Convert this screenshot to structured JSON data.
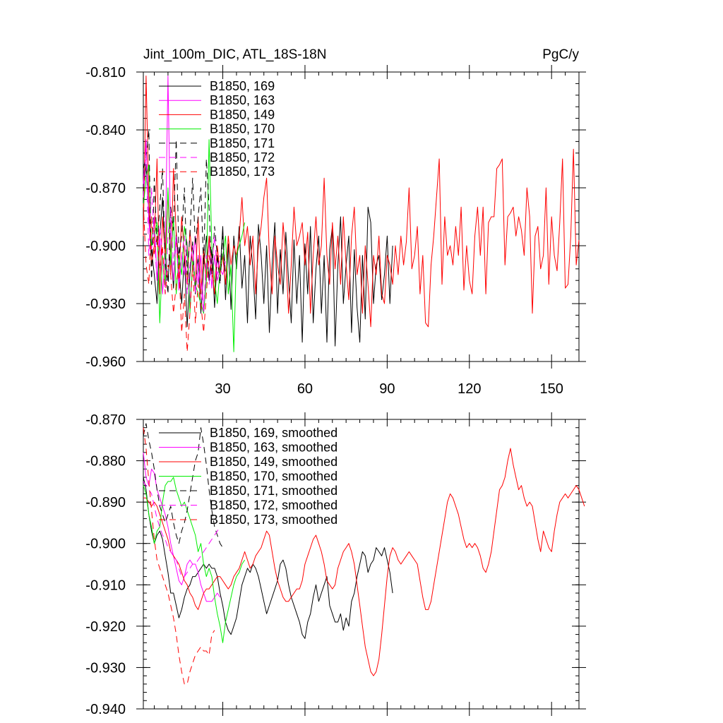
{
  "chart_data": [
    {
      "type": "line",
      "title_left": "Jint_100m_DIC, ATL_18S-18N",
      "title_right": "PgC/y",
      "xlim": [
        1,
        160
      ],
      "ylim": [
        -0.96,
        -0.81
      ],
      "xticks": [
        30,
        60,
        90,
        120,
        150
      ],
      "xtick_labels": [
        "30",
        "60",
        "90",
        "120",
        "150"
      ],
      "yticks": [
        -0.96,
        -0.93,
        -0.9,
        -0.87,
        -0.84,
        -0.81
      ],
      "ytick_labels": [
        "-0.960",
        "-0.930",
        "-0.900",
        "-0.870",
        "-0.840",
        "-0.810"
      ],
      "legend_position": "top-left",
      "series": [
        {
          "name": "B1850, 169",
          "color": "#000000",
          "dash": "solid",
          "values": [
            -0.872,
            -0.858,
            -0.884,
            -0.902,
            -0.915,
            -0.93,
            -0.895,
            -0.875,
            -0.905,
            -0.918,
            -0.9,
            -0.922,
            -0.893,
            -0.91,
            -0.93,
            -0.905,
            -0.942,
            -0.915,
            -0.898,
            -0.925,
            -0.905,
            -0.935,
            -0.912,
            -0.895,
            -0.918,
            -0.902,
            -0.932,
            -0.905,
            -0.915,
            -0.89,
            -0.928,
            -0.899,
            -0.933,
            -0.895,
            -0.912,
            -0.89,
            -0.922,
            -0.905,
            -0.94,
            -0.895,
            -0.912,
            -0.938,
            -0.889,
            -0.905,
            -0.93,
            -0.9,
            -0.945,
            -0.91,
            -0.888,
            -0.935,
            -0.902,
            -0.925,
            -0.893,
            -0.918,
            -0.94,
            -0.897,
            -0.93,
            -0.905,
            -0.95,
            -0.899,
            -0.925,
            -0.89,
            -0.94,
            -0.912,
            -0.895,
            -0.935,
            -0.905,
            -0.95,
            -0.902,
            -0.89,
            -0.952,
            -0.91,
            -0.885,
            -0.93,
            -0.91,
            -0.895,
            -0.945,
            -0.902,
            -0.932,
            -0.95,
            -0.905,
            -0.938,
            -0.88,
            -0.888,
            -0.93,
            -0.91,
            -0.905,
            -0.928,
            -0.915,
            -0.895,
            -0.93,
            -0.9
          ]
        },
        {
          "name": "B1850, 163",
          "color": "#ff00ff",
          "dash": "solid",
          "values": [
            -0.868,
            -0.845,
            -0.888,
            -0.902,
            -0.885,
            -0.918,
            -0.895,
            -0.925,
            -0.905,
            -0.812,
            -0.9,
            -0.918,
            -0.895,
            -0.923,
            -0.905,
            -0.915,
            -0.898,
            -0.93,
            -0.91,
            -0.895,
            -0.92,
            -0.905,
            -0.935,
            -0.912,
            -0.898,
            -0.922,
            -0.905,
            -0.918,
            -0.912,
            -0.915,
            -0.908
          ]
        },
        {
          "name": "B1850, 149",
          "color": "#ff0000",
          "dash": "solid",
          "values": [
            -0.895,
            -0.812,
            -0.875,
            -0.91,
            -0.9,
            -0.855,
            -0.925,
            -0.885,
            -0.905,
            -0.872,
            -0.915,
            -0.86,
            -0.895,
            -0.918,
            -0.885,
            -0.905,
            -0.92,
            -0.892,
            -0.91,
            -0.92,
            -0.885,
            -0.925,
            -0.902,
            -0.918,
            -0.895,
            -0.91,
            -0.925,
            -0.9,
            -0.915,
            -0.905,
            -0.92,
            -0.895,
            -0.91,
            -0.9,
            -0.905,
            -0.895,
            -0.875,
            -0.9,
            -0.89,
            -0.91,
            -0.895,
            -0.925,
            -0.9,
            -0.89,
            -0.875,
            -0.865,
            -0.905,
            -0.925,
            -0.895,
            -0.91,
            -0.92,
            -0.888,
            -0.905,
            -0.935,
            -0.91,
            -0.88,
            -0.9,
            -0.895,
            -0.888,
            -0.91,
            -0.893,
            -0.935,
            -0.905,
            -0.885,
            -0.91,
            -0.9,
            -0.865,
            -0.905,
            -0.92,
            -0.888,
            -0.912,
            -0.895,
            -0.92,
            -0.885,
            -0.91,
            -0.928,
            -0.895,
            -0.88,
            -0.915,
            -0.905,
            -0.935,
            -0.9,
            -0.92,
            -0.942,
            -0.905,
            -0.915,
            -0.895,
            -0.925,
            -0.93,
            -0.905,
            -0.91,
            -0.92,
            -0.9,
            -0.915,
            -0.895,
            -0.91,
            -0.898,
            -0.87,
            -0.912,
            -0.905,
            -0.89,
            -0.925,
            -0.905,
            -0.94,
            -0.942,
            -0.91,
            -0.895,
            -0.875,
            -0.855,
            -0.92,
            -0.885,
            -0.905,
            -0.9,
            -0.91,
            -0.89,
            -0.905,
            -0.88,
            -0.923,
            -0.9,
            -0.918,
            -0.925,
            -0.895,
            -0.88,
            -0.905,
            -0.88,
            -0.925,
            -0.888,
            -0.885,
            -0.885,
            -0.86,
            -0.858,
            -0.855,
            -0.91,
            -0.885,
            -0.883,
            -0.88,
            -0.895,
            -0.885,
            -0.892,
            -0.905,
            -0.87,
            -0.885,
            -0.935,
            -0.895,
            -0.89,
            -0.912,
            -0.905,
            -0.87,
            -0.92,
            -0.885,
            -0.905,
            -0.913,
            -0.888,
            -0.855,
            -0.922,
            -0.92,
            -0.895,
            -0.85,
            -0.91,
            -0.897
          ]
        },
        {
          "name": "B1850, 170",
          "color": "#00ee00",
          "dash": "solid",
          "values": [
            -0.88,
            -0.865,
            -0.858,
            -0.9,
            -0.895,
            -0.888,
            -0.94,
            -0.905,
            -0.92,
            -0.87,
            -0.91,
            -0.885,
            -0.925,
            -0.905,
            -0.915,
            -0.89,
            -0.9,
            -0.935,
            -0.908,
            -0.92,
            -0.925,
            -0.93,
            -0.935,
            -0.918,
            -0.845,
            -0.9,
            -0.918,
            -0.93,
            -0.912,
            -0.905,
            -0.895,
            -0.925,
            -0.91,
            -0.955,
            -0.905,
            -0.9,
            -0.895,
            -0.888
          ]
        },
        {
          "name": "B1850, 171",
          "color": "#000000",
          "dash": "9 6",
          "values": [
            -0.86,
            -0.855,
            -0.84,
            -0.92,
            -0.865,
            -0.9,
            -0.88,
            -0.86,
            -0.91,
            -0.925,
            -0.88,
            -0.892,
            -0.845,
            -0.905,
            -0.895,
            -0.87,
            -0.915,
            -0.895,
            -0.865,
            -0.9,
            -0.885,
            -0.87,
            -0.91,
            -0.855,
            -0.88,
            -0.915,
            -0.89,
            -0.905,
            -0.92,
            -0.895,
            -0.915
          ]
        },
        {
          "name": "B1850, 172",
          "color": "#ff00ff",
          "dash": "9 6",
          "values": [
            -0.875,
            -0.85,
            -0.905,
            -0.87,
            -0.895,
            -0.918,
            -0.89,
            -0.905,
            -0.925,
            -0.895,
            -0.882,
            -0.91,
            -0.895,
            -0.92,
            -0.905,
            -0.895,
            -0.925,
            -0.91,
            -0.9,
            -0.925,
            -0.905,
            -0.92,
            -0.935,
            -0.905,
            -0.92,
            -0.91,
            -0.895,
            -0.915,
            -0.905
          ]
        },
        {
          "name": "B1850, 173",
          "color": "#ff0000",
          "dash": "9 6",
          "values": [
            -0.878,
            -0.91,
            -0.92,
            -0.885,
            -0.905,
            -0.895,
            -0.912,
            -0.9,
            -0.925,
            -0.91,
            -0.915,
            -0.935,
            -0.92,
            -0.91,
            -0.945,
            -0.925,
            -0.955,
            -0.935,
            -0.91,
            -0.94,
            -0.92,
            -0.93,
            -0.945,
            -0.925,
            -0.905,
            -0.915,
            -0.92
          ]
        }
      ]
    },
    {
      "type": "line",
      "xlim": [
        1,
        160
      ],
      "ylim": [
        -0.94,
        -0.87
      ],
      "xticks": [
        30,
        60,
        90,
        120,
        150
      ],
      "yticks": [
        -0.94,
        -0.93,
        -0.92,
        -0.91,
        -0.9,
        -0.89,
        -0.88,
        -0.87
      ],
      "ytick_labels": [
        "-0.940",
        "-0.930",
        "-0.920",
        "-0.910",
        "-0.900",
        "-0.890",
        "-0.880",
        "-0.870"
      ],
      "legend_position": "top-left",
      "series": [
        {
          "name": "B1850, 169, smoothed",
          "color": "#000000",
          "dash": "solid",
          "values": [
            -0.884,
            -0.887,
            -0.893,
            -0.897,
            -0.9,
            -0.898,
            -0.897,
            -0.899,
            -0.903,
            -0.907,
            -0.912,
            -0.912,
            -0.915,
            -0.918,
            -0.916,
            -0.913,
            -0.911,
            -0.91,
            -0.908,
            -0.908,
            -0.907,
            -0.906,
            -0.905,
            -0.906,
            -0.905,
            -0.906,
            -0.906,
            -0.908,
            -0.912,
            -0.915,
            -0.919,
            -0.921,
            -0.922,
            -0.92,
            -0.918,
            -0.914,
            -0.91,
            -0.908,
            -0.906,
            -0.907,
            -0.905,
            -0.906,
            -0.908,
            -0.911,
            -0.914,
            -0.917,
            -0.915,
            -0.913,
            -0.911,
            -0.909,
            -0.905,
            -0.904,
            -0.906,
            -0.91,
            -0.913,
            -0.915,
            -0.917,
            -0.919,
            -0.922,
            -0.923,
            -0.919,
            -0.917,
            -0.913,
            -0.91,
            -0.914,
            -0.912,
            -0.91,
            -0.908,
            -0.915,
            -0.917,
            -0.919,
            -0.919,
            -0.917,
            -0.921,
            -0.918,
            -0.92,
            -0.914,
            -0.912,
            -0.908,
            -0.905,
            -0.902,
            -0.903,
            -0.907,
            -0.905,
            -0.904,
            -0.901,
            -0.902,
            -0.903,
            -0.901,
            -0.904,
            -0.907,
            -0.912
          ]
        },
        {
          "name": "B1850, 163, smoothed",
          "color": "#ff00ff",
          "dash": "solid",
          "values": [
            -0.878,
            -0.884,
            -0.886,
            -0.882,
            -0.883,
            -0.887,
            -0.889,
            -0.891,
            -0.893,
            -0.896,
            -0.9,
            -0.903,
            -0.906,
            -0.909,
            -0.91,
            -0.908,
            -0.905,
            -0.904,
            -0.905,
            -0.905,
            -0.907,
            -0.91,
            -0.912,
            -0.914,
            -0.914,
            -0.914,
            -0.913,
            -0.912,
            -0.913
          ]
        },
        {
          "name": "B1850, 149, smoothed",
          "color": "#ff0000",
          "dash": "solid",
          "values": [
            -0.889,
            -0.889,
            -0.89,
            -0.891,
            -0.89,
            -0.891,
            -0.893,
            -0.895,
            -0.897,
            -0.899,
            -0.902,
            -0.903,
            -0.904,
            -0.905,
            -0.907,
            -0.909,
            -0.91,
            -0.912,
            -0.913,
            -0.915,
            -0.916,
            -0.914,
            -0.912,
            -0.911,
            -0.911,
            -0.91,
            -0.909,
            -0.908,
            -0.908,
            -0.909,
            -0.91,
            -0.911,
            -0.91,
            -0.908,
            -0.907,
            -0.906,
            -0.904,
            -0.902,
            -0.904,
            -0.906,
            -0.905,
            -0.903,
            -0.902,
            -0.901,
            -0.899,
            -0.897,
            -0.898,
            -0.902,
            -0.906,
            -0.909,
            -0.911,
            -0.913,
            -0.914,
            -0.914,
            -0.913,
            -0.912,
            -0.911,
            -0.911,
            -0.909,
            -0.905,
            -0.903,
            -0.901,
            -0.899,
            -0.898,
            -0.9,
            -0.902,
            -0.905,
            -0.909,
            -0.91,
            -0.911,
            -0.91,
            -0.906,
            -0.904,
            -0.902,
            -0.901,
            -0.9,
            -0.902,
            -0.905,
            -0.91,
            -0.915,
            -0.92,
            -0.925,
            -0.928,
            -0.931,
            -0.932,
            -0.931,
            -0.928,
            -0.922,
            -0.915,
            -0.908,
            -0.903,
            -0.901,
            -0.902,
            -0.904,
            -0.905,
            -0.904,
            -0.903,
            -0.902,
            -0.903,
            -0.904,
            -0.905,
            -0.909,
            -0.913,
            -0.916,
            -0.916,
            -0.914,
            -0.91,
            -0.906,
            -0.902,
            -0.898,
            -0.894,
            -0.89,
            -0.888,
            -0.889,
            -0.891,
            -0.893,
            -0.896,
            -0.899,
            -0.901,
            -0.9,
            -0.901,
            -0.9,
            -0.901,
            -0.903,
            -0.906,
            -0.907,
            -0.905,
            -0.902,
            -0.897,
            -0.892,
            -0.887,
            -0.886,
            -0.884,
            -0.88,
            -0.877,
            -0.881,
            -0.884,
            -0.887,
            -0.886,
            -0.889,
            -0.891,
            -0.89,
            -0.891,
            -0.895,
            -0.899,
            -0.902,
            -0.897,
            -0.899,
            -0.901,
            -0.902,
            -0.897,
            -0.893,
            -0.89,
            -0.889,
            -0.888,
            -0.889,
            -0.888,
            -0.887,
            -0.886,
            -0.887,
            -0.889,
            -0.891
          ]
        },
        {
          "name": "B1850, 170, smoothed",
          "color": "#00ee00",
          "dash": "solid",
          "values": [
            -0.886,
            -0.888,
            -0.893,
            -0.896,
            -0.9,
            -0.897,
            -0.896,
            -0.89,
            -0.886,
            -0.885,
            -0.885,
            -0.884,
            -0.887,
            -0.889,
            -0.891,
            -0.89,
            -0.892,
            -0.894,
            -0.896,
            -0.898,
            -0.902,
            -0.9,
            -0.905,
            -0.908,
            -0.906,
            -0.908,
            -0.913,
            -0.917,
            -0.92,
            -0.924,
            -0.919,
            -0.916,
            -0.913,
            -0.91,
            -0.908,
            -0.907,
            -0.905,
            -0.904
          ]
        },
        {
          "name": "B1850, 171, smoothed",
          "color": "#000000",
          "dash": "9 6",
          "values": [
            -0.874,
            -0.871,
            -0.875,
            -0.878,
            -0.882,
            -0.887,
            -0.891,
            -0.893,
            -0.895,
            -0.893,
            -0.891,
            -0.895,
            -0.898,
            -0.9,
            -0.897,
            -0.895,
            -0.892,
            -0.888,
            -0.884,
            -0.88,
            -0.878,
            -0.872,
            -0.876,
            -0.881,
            -0.887,
            -0.892,
            -0.896,
            -0.898,
            -0.9,
            -0.901,
            -0.901
          ]
        },
        {
          "name": "B1850, 172, smoothed",
          "color": "#ff00ff",
          "dash": "9 6",
          "values": [
            -0.885,
            -0.886,
            -0.887,
            -0.888,
            -0.891,
            -0.894,
            -0.896,
            -0.898,
            -0.899,
            -0.901,
            -0.902,
            -0.903,
            -0.904,
            -0.906,
            -0.908,
            -0.908,
            -0.907,
            -0.906,
            -0.905,
            -0.905,
            -0.904,
            -0.903,
            -0.902,
            -0.901,
            -0.9,
            -0.899,
            -0.898,
            -0.897,
            -0.896
          ]
        },
        {
          "name": "B1850, 173, smoothed",
          "color": "#ff0000",
          "dash": "9 6",
          "values": [
            -0.872,
            -0.877,
            -0.885,
            -0.892,
            -0.899,
            -0.904,
            -0.906,
            -0.908,
            -0.91,
            -0.912,
            -0.915,
            -0.918,
            -0.922,
            -0.927,
            -0.931,
            -0.934,
            -0.934,
            -0.931,
            -0.929,
            -0.927,
            -0.926,
            -0.925,
            -0.926,
            -0.926,
            -0.927,
            -0.922,
            -0.921
          ]
        }
      ]
    }
  ]
}
